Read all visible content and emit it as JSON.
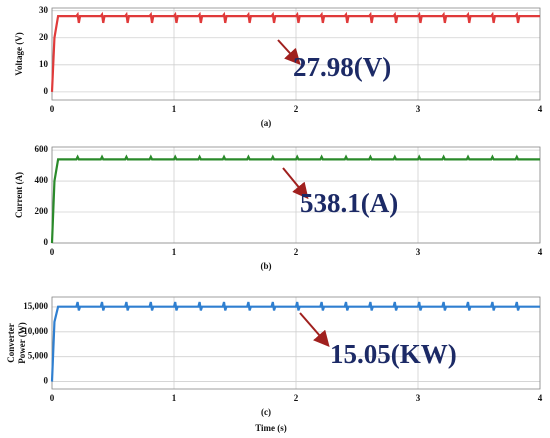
{
  "chart_data": [
    {
      "type": "line",
      "ylabel": "Voltage (V)",
      "panel_label": "(a)",
      "annotation": "27.98(V)",
      "xlim": [
        0,
        4
      ],
      "xticks": [
        0,
        1,
        2,
        3,
        4
      ],
      "ylim": [
        -3,
        31
      ],
      "yticks": [
        0,
        10,
        20,
        30
      ],
      "grid": true,
      "series": [
        {
          "color": "#e03a3a",
          "x": [
            0,
            0.02,
            0.05,
            0.2,
            0.21,
            0.22,
            0.23,
            0.4,
            0.41,
            0.42,
            0.43,
            0.6,
            0.61,
            0.62,
            0.63,
            0.8,
            0.81,
            0.82,
            0.83,
            1,
            1.01,
            1.02,
            1.03,
            1.2,
            1.21,
            1.22,
            1.23,
            1.4,
            1.41,
            1.42,
            1.43,
            1.6,
            1.61,
            1.62,
            1.63,
            1.8,
            1.81,
            1.82,
            1.83,
            2,
            2.01,
            2.02,
            2.03,
            2.2,
            2.21,
            2.22,
            2.23,
            2.4,
            2.41,
            2.42,
            2.43,
            2.6,
            2.61,
            2.62,
            2.63,
            2.8,
            2.81,
            2.82,
            2.83,
            3,
            3.01,
            3.02,
            3.03,
            3.2,
            3.21,
            3.22,
            3.23,
            3.4,
            3.41,
            3.42,
            3.43,
            3.6,
            3.61,
            3.62,
            3.63,
            3.8,
            3.81,
            3.82,
            3.83,
            4
          ],
          "values": [
            0,
            20,
            28,
            28,
            28.6,
            25.5,
            28,
            28,
            28.6,
            25.5,
            28,
            28,
            28.6,
            25.5,
            28,
            28,
            28.6,
            25.5,
            28,
            28,
            28.6,
            25.5,
            28,
            28,
            28.6,
            25.5,
            28,
            28,
            28.6,
            25.5,
            28,
            28,
            28.6,
            25.5,
            28,
            28,
            28.6,
            25.5,
            28,
            28,
            28.6,
            25.5,
            28,
            28,
            28.6,
            25.5,
            28,
            28,
            28.6,
            25.5,
            28,
            28,
            28.6,
            25.5,
            28,
            28,
            28.6,
            25.5,
            28,
            28,
            28.6,
            25.5,
            28,
            28,
            28.6,
            25.5,
            28,
            28,
            28.6,
            25.5,
            28,
            28,
            28.6,
            25.5,
            28,
            28,
            28.6,
            25.5,
            28,
            28
          ]
        }
      ]
    },
    {
      "type": "line",
      "ylabel": "Current (A)",
      "panel_label": "(b)",
      "annotation": "538.1(A)",
      "xlim": [
        0,
        4
      ],
      "xticks": [
        0,
        1,
        2,
        3,
        4
      ],
      "ylim": [
        0,
        620
      ],
      "yticks": [
        0,
        200,
        400,
        600
      ],
      "grid": true,
      "series": [
        {
          "color": "#2a8a2a",
          "x": [
            0,
            0.02,
            0.05,
            0.2,
            0.21,
            0.22,
            0.23,
            0.4,
            0.41,
            0.42,
            0.43,
            0.6,
            0.61,
            0.62,
            0.63,
            0.8,
            0.81,
            0.82,
            0.83,
            1,
            1.01,
            1.02,
            1.03,
            1.2,
            1.21,
            1.22,
            1.23,
            1.4,
            1.41,
            1.42,
            1.43,
            1.6,
            1.61,
            1.62,
            1.63,
            1.8,
            1.81,
            1.82,
            1.83,
            2,
            2.01,
            2.02,
            2.03,
            2.2,
            2.21,
            2.22,
            2.23,
            2.4,
            2.41,
            2.42,
            2.43,
            2.6,
            2.61,
            2.62,
            2.63,
            2.8,
            2.81,
            2.82,
            2.83,
            3,
            3.01,
            3.02,
            3.03,
            3.2,
            3.21,
            3.22,
            3.23,
            3.4,
            3.41,
            3.42,
            3.43,
            3.6,
            3.61,
            3.62,
            3.63,
            3.8,
            3.81,
            3.82,
            3.83,
            4
          ],
          "values": [
            0,
            400,
            540,
            540,
            556,
            540,
            540,
            540,
            556,
            540,
            540,
            540,
            556,
            540,
            540,
            540,
            556,
            540,
            540,
            540,
            556,
            540,
            540,
            540,
            556,
            540,
            540,
            540,
            556,
            540,
            540,
            540,
            556,
            540,
            540,
            540,
            556,
            540,
            540,
            540,
            556,
            540,
            540,
            540,
            556,
            540,
            540,
            540,
            556,
            540,
            540,
            540,
            556,
            540,
            540,
            540,
            556,
            540,
            540,
            540,
            556,
            540,
            540,
            540,
            556,
            540,
            540,
            540,
            556,
            540,
            540,
            540,
            556,
            540,
            540,
            540,
            556,
            540,
            540,
            540
          ]
        }
      ]
    },
    {
      "type": "line",
      "ylabel": [
        "Converter",
        "Power (W)"
      ],
      "panel_label": "(c)",
      "annotation": "15.05(KW)",
      "xlabel": "Time (s)",
      "xlim": [
        0,
        4
      ],
      "xticks": [
        0,
        1,
        2,
        3,
        4
      ],
      "ylim": [
        -1500,
        17000
      ],
      "yticks": [
        0,
        {
          "value": 5000,
          "label": "5,000"
        },
        {
          "value": 10000,
          "label": "10,000"
        },
        {
          "value": 15000,
          "label": "15,000"
        }
      ],
      "grid": true,
      "series": [
        {
          "color": "#2f7fd0",
          "x": [
            0,
            0.02,
            0.05,
            0.2,
            0.21,
            0.22,
            0.23,
            0.4,
            0.41,
            0.42,
            0.43,
            0.6,
            0.61,
            0.62,
            0.63,
            0.8,
            0.81,
            0.82,
            0.83,
            1,
            1.01,
            1.02,
            1.03,
            1.2,
            1.21,
            1.22,
            1.23,
            1.4,
            1.41,
            1.42,
            1.43,
            1.6,
            1.61,
            1.62,
            1.63,
            1.8,
            1.81,
            1.82,
            1.83,
            2,
            2.01,
            2.02,
            2.03,
            2.2,
            2.21,
            2.22,
            2.23,
            2.4,
            2.41,
            2.42,
            2.43,
            2.6,
            2.61,
            2.62,
            2.63,
            2.8,
            2.81,
            2.82,
            2.83,
            3,
            3.01,
            3.02,
            3.03,
            3.2,
            3.21,
            3.22,
            3.23,
            3.4,
            3.41,
            3.42,
            3.43,
            3.6,
            3.61,
            3.62,
            3.63,
            3.8,
            3.81,
            3.82,
            3.83,
            4
          ],
          "values": [
            0,
            12000,
            15050,
            15050,
            16000,
            14300,
            15050,
            15050,
            16000,
            14300,
            15050,
            15050,
            16000,
            14300,
            15050,
            15050,
            16000,
            14300,
            15050,
            15050,
            16000,
            14300,
            15050,
            15050,
            16000,
            14300,
            15050,
            15050,
            16000,
            14300,
            15050,
            15050,
            16000,
            14300,
            15050,
            15050,
            16000,
            14300,
            15050,
            15050,
            16000,
            14300,
            15050,
            15050,
            16000,
            14300,
            15050,
            15050,
            16000,
            14300,
            15050,
            15050,
            16000,
            14300,
            15050,
            15050,
            16000,
            14300,
            15050,
            15050,
            16000,
            14300,
            15050,
            15050,
            16000,
            14300,
            15050,
            15050,
            16000,
            14300,
            15050,
            15050,
            16000,
            14300,
            15050,
            15050,
            16000,
            14300,
            15050,
            15050
          ]
        }
      ]
    }
  ]
}
